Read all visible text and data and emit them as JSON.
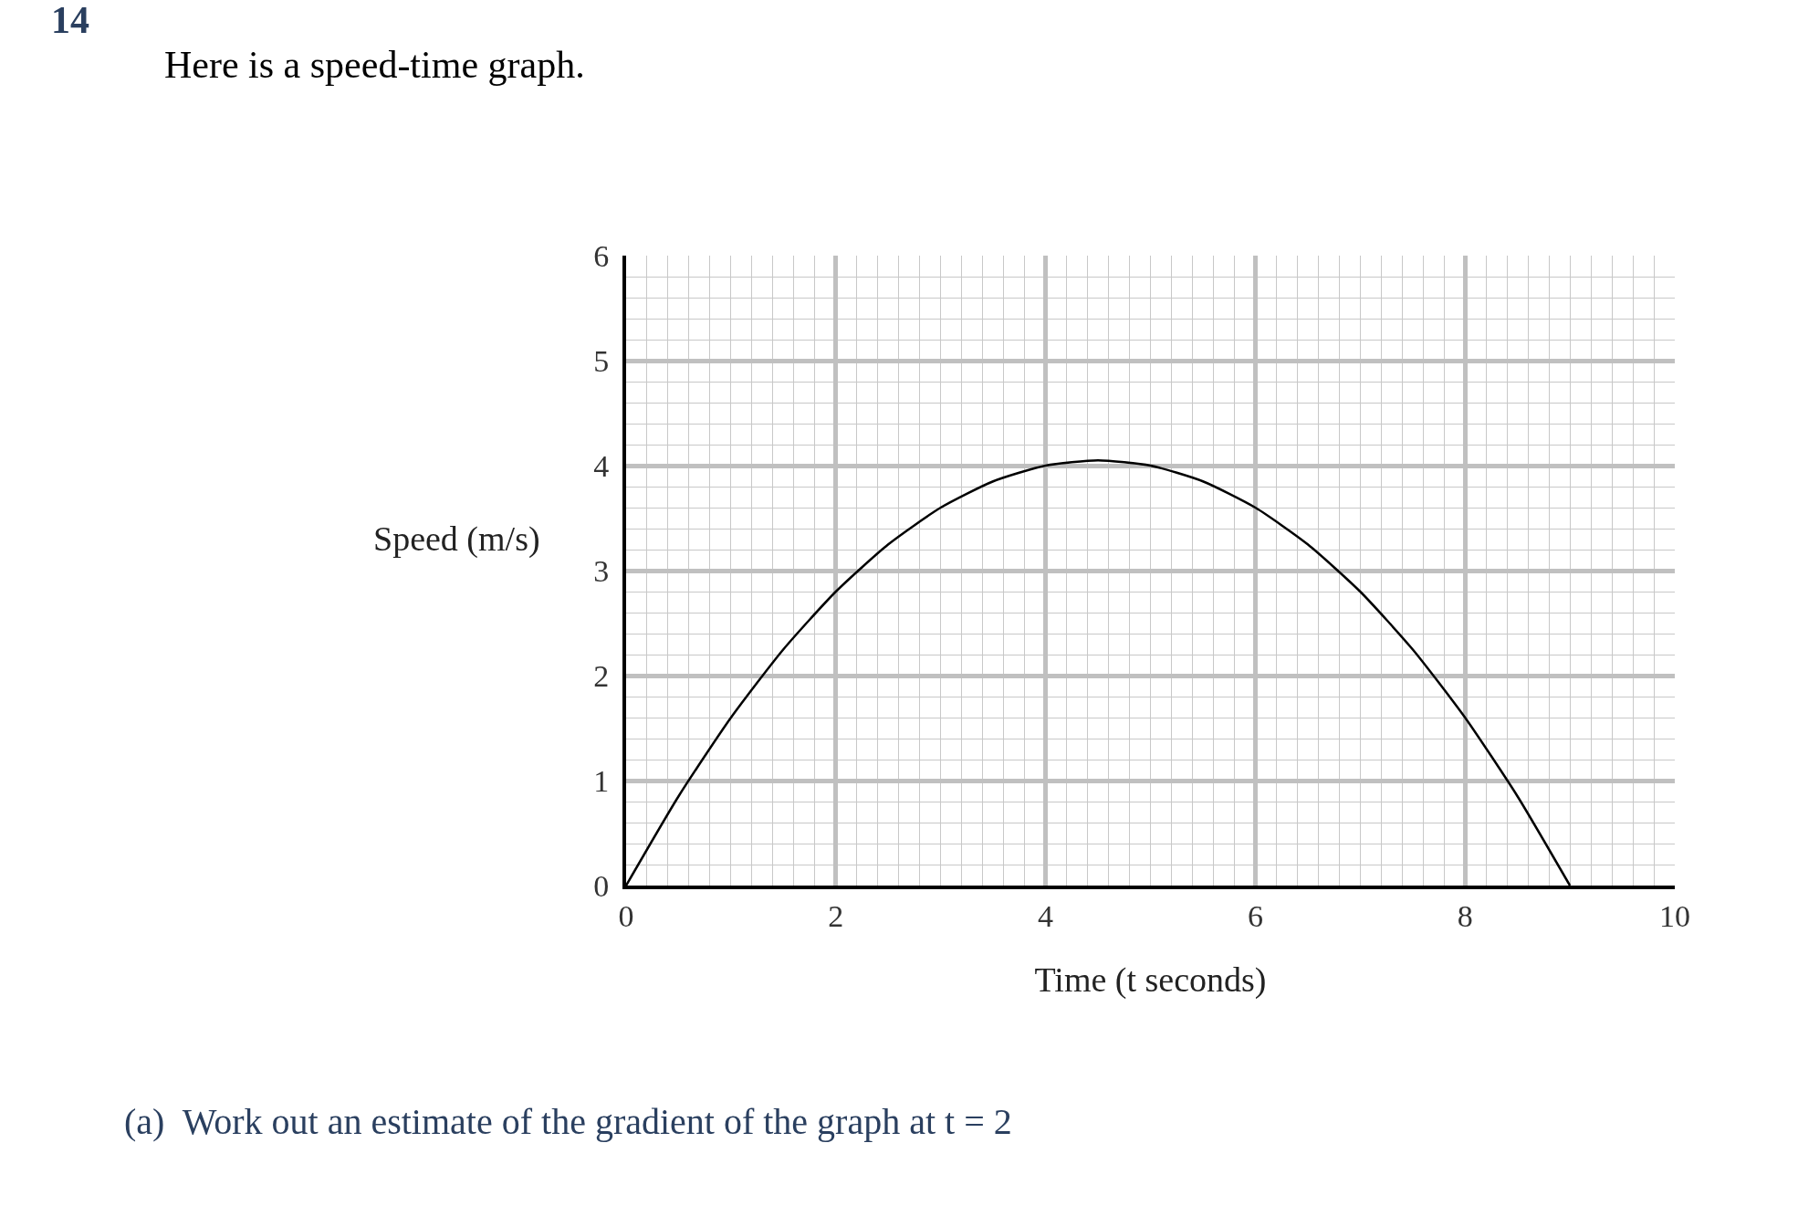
{
  "chart_data": {
    "type": "line",
    "title": "Here is a speed-time graph.",
    "xlabel": "Time (t seconds)",
    "ylabel": "Speed (m/s)",
    "annotations": [
      "14",
      "(a)  Work out an estimate of the gradient of the graph at t = 2"
    ],
    "x": [
      0,
      0.5,
      1,
      1.5,
      2,
      2.5,
      3,
      3.5,
      4,
      4.5,
      5,
      5.5,
      6,
      6.5,
      7,
      7.5,
      8,
      8.5,
      9
    ],
    "series": [
      {
        "color": "#000000",
        "values": [
          0,
          0.85,
          1.6,
          2.25,
          2.8,
          3.25,
          3.6,
          3.85,
          4.0,
          4.05,
          4.0,
          3.85,
          3.6,
          3.25,
          2.8,
          2.25,
          1.6,
          0.85,
          0
        ]
      }
    ],
    "xlim": [
      0,
      10
    ],
    "ylim": [
      0,
      6
    ],
    "xticks": [
      0,
      2,
      4,
      6,
      8,
      10
    ],
    "yticks": [
      0,
      1,
      2,
      3,
      4,
      5,
      6
    ],
    "grid": true,
    "legend": false,
    "marker": "none",
    "line_style": "solid"
  }
}
